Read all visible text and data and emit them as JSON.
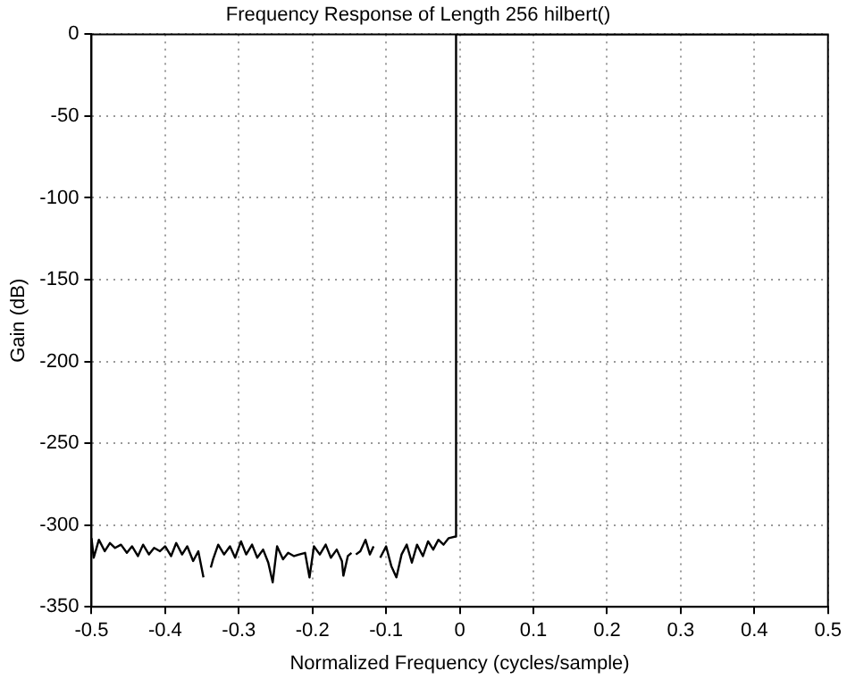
{
  "chart_data": {
    "type": "line",
    "title": "Frequency Response of Length 256 hilbert()",
    "xlabel": "Normalized Frequency (cycles/sample)",
    "ylabel": "Gain (dB)",
    "x": [
      -0.5,
      -0.497,
      -0.49,
      -0.482,
      -0.475,
      -0.468,
      -0.46,
      -0.452,
      -0.445,
      -0.437,
      -0.43,
      -0.422,
      -0.415,
      -0.407,
      -0.4,
      -0.392,
      -0.385,
      -0.377,
      -0.37,
      -0.362,
      -0.355,
      -0.348,
      -0.346,
      -0.338,
      -0.335,
      -0.328,
      -0.32,
      -0.312,
      -0.305,
      -0.297,
      -0.29,
      -0.282,
      -0.275,
      -0.267,
      -0.26,
      -0.254,
      -0.248,
      -0.24,
      -0.233,
      -0.225,
      -0.218,
      -0.21,
      -0.204,
      -0.198,
      -0.19,
      -0.182,
      -0.175,
      -0.167,
      -0.16,
      -0.158,
      -0.152,
      -0.147,
      -0.146,
      -0.141,
      -0.135,
      -0.128,
      -0.122,
      -0.117,
      -0.116,
      -0.108,
      -0.1,
      -0.093,
      -0.086,
      -0.079,
      -0.072,
      -0.065,
      -0.058,
      -0.05,
      -0.043,
      -0.036,
      -0.029,
      -0.022,
      -0.015,
      -0.0055,
      -0.005,
      0,
      0.1,
      0.2,
      0.3,
      0.4,
      0.5
    ],
    "series": [
      {
        "color": "#000000",
        "values": [
          -308,
          -320,
          -309,
          -316,
          -311,
          -314,
          -312,
          -317,
          -313,
          -319,
          -312,
          -318,
          -314,
          -316,
          -313,
          -319,
          -311,
          -318,
          -313,
          -322,
          -316,
          -332,
          null,
          -326,
          -321,
          -312,
          -318,
          -313,
          -320,
          -310,
          -318,
          -312,
          -320,
          -315,
          -323,
          -335,
          -313,
          -321,
          -317,
          -319,
          -318,
          -317,
          -332,
          -313,
          -318,
          -312,
          -320,
          -315,
          -322,
          -331,
          -319,
          -317,
          null,
          -318,
          -316,
          -309,
          -318,
          -313,
          null,
          -320,
          -313,
          -325,
          -332,
          -318,
          -312,
          -323,
          -312,
          -319,
          -310,
          -315,
          -309,
          -312,
          -308,
          -307,
          0,
          0,
          0,
          0,
          0,
          0,
          0
        ]
      }
    ],
    "xlim": [
      -0.5,
      0.5
    ],
    "xticks": [
      -0.5,
      -0.4,
      -0.3,
      -0.2,
      -0.1,
      0,
      0.1,
      0.2,
      0.3,
      0.4,
      0.5
    ],
    "ylim": [
      -350,
      0
    ],
    "yticks": [
      -350,
      -300,
      -250,
      -200,
      -150,
      -100,
      -50,
      0
    ],
    "grid": true,
    "line_style": "solid",
    "marker": "none"
  }
}
